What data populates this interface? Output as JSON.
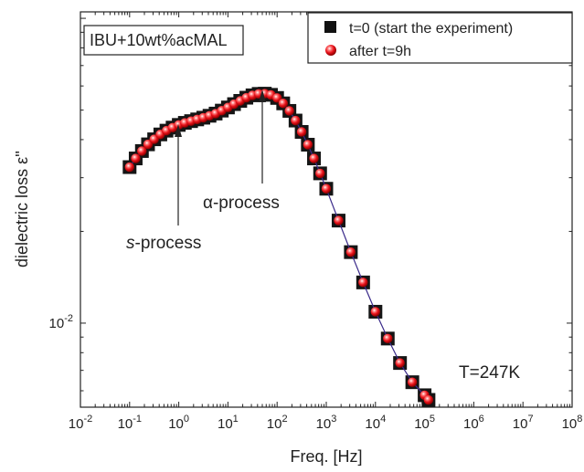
{
  "chart_data": {
    "type": "scatter",
    "xlabel": "Freq. [Hz]",
    "ylabel": "dielectric loss ε''",
    "x_scale": "log",
    "y_scale": "log",
    "xlim": [
      0.01,
      100000000
    ],
    "ylim": [
      0.0053,
      0.105
    ],
    "x_tick_labels": [
      {
        "value": 0.01,
        "base": "10",
        "exp": "-2"
      },
      {
        "value": 0.1,
        "base": "10",
        "exp": "-1"
      },
      {
        "value": 1,
        "base": "10",
        "exp": "0"
      },
      {
        "value": 10,
        "base": "10",
        "exp": "1"
      },
      {
        "value": 100,
        "base": "10",
        "exp": "2"
      },
      {
        "value": 1000,
        "base": "10",
        "exp": "3"
      },
      {
        "value": 10000,
        "base": "10",
        "exp": "4"
      },
      {
        "value": 100000,
        "base": "10",
        "exp": "5"
      },
      {
        "value": 1000000,
        "base": "10",
        "exp": "6"
      },
      {
        "value": 10000000,
        "base": "10",
        "exp": "7"
      },
      {
        "value": 100000000,
        "base": "10",
        "exp": "8"
      }
    ],
    "y_tick_labels": [
      {
        "value": 0.01,
        "base": "10",
        "exp": "-2"
      }
    ],
    "sample_label": "IBU+10wt%acMAL",
    "temperature_label": "T=247K",
    "legend": [
      {
        "label": "t=0 (start the experiment)",
        "marker": "square",
        "color": "#111111"
      },
      {
        "label": "after t=9h",
        "marker": "sphere",
        "color": "#e8121a"
      }
    ],
    "annotations": [
      {
        "prefix": "α",
        "text": "-process",
        "at_freq": 53
      },
      {
        "prefix": "s",
        "text": "-process",
        "at_freq": 1.0
      }
    ],
    "series": [
      {
        "name": "t=0 (start the experiment)",
        "x": [
          0.1,
          0.133,
          0.178,
          0.237,
          0.316,
          0.422,
          0.562,
          0.75,
          1.0,
          1.33,
          1.78,
          2.37,
          3.16,
          4.22,
          5.62,
          7.5,
          10,
          13.3,
          17.8,
          23.7,
          31.6,
          42.2,
          56.2,
          75,
          100,
          133,
          178,
          237,
          316,
          422,
          562,
          750,
          1000,
          1780,
          3160,
          5620,
          10000,
          17800,
          31600,
          56200,
          100000,
          120000
        ],
        "y": [
          0.0325,
          0.0347,
          0.0367,
          0.0386,
          0.0401,
          0.0416,
          0.0428,
          0.0438,
          0.0447,
          0.0454,
          0.046,
          0.0466,
          0.0472,
          0.0479,
          0.0487,
          0.0498,
          0.051,
          0.0523,
          0.0536,
          0.0549,
          0.0559,
          0.0565,
          0.0566,
          0.0561,
          0.0548,
          0.0526,
          0.0497,
          0.0462,
          0.0424,
          0.0385,
          0.0347,
          0.031,
          0.0276,
          0.0217,
          0.0171,
          0.0136,
          0.0109,
          0.0089,
          0.0074,
          0.0064,
          0.0058,
          0.0056
        ]
      },
      {
        "name": "after t=9h",
        "x": [
          0.1,
          0.133,
          0.178,
          0.237,
          0.316,
          0.422,
          0.562,
          0.75,
          1.0,
          1.33,
          1.78,
          2.37,
          3.16,
          4.22,
          5.62,
          7.5,
          10,
          13.3,
          17.8,
          23.7,
          31.6,
          42.2,
          56.2,
          75,
          100,
          133,
          178,
          237,
          316,
          422,
          562,
          750,
          1000,
          1780,
          3160,
          5620,
          10000,
          17800,
          31600,
          56200,
          100000,
          120000
        ],
        "y": [
          0.0325,
          0.0347,
          0.0367,
          0.0386,
          0.0401,
          0.0416,
          0.0428,
          0.0438,
          0.0447,
          0.0454,
          0.046,
          0.0466,
          0.0472,
          0.0479,
          0.0487,
          0.0498,
          0.051,
          0.0523,
          0.0536,
          0.0549,
          0.0559,
          0.0565,
          0.0566,
          0.0561,
          0.0548,
          0.0526,
          0.0497,
          0.0462,
          0.0424,
          0.0385,
          0.0347,
          0.031,
          0.0276,
          0.0217,
          0.0171,
          0.0136,
          0.0109,
          0.0089,
          0.0074,
          0.0064,
          0.0058,
          0.0056
        ]
      }
    ]
  }
}
